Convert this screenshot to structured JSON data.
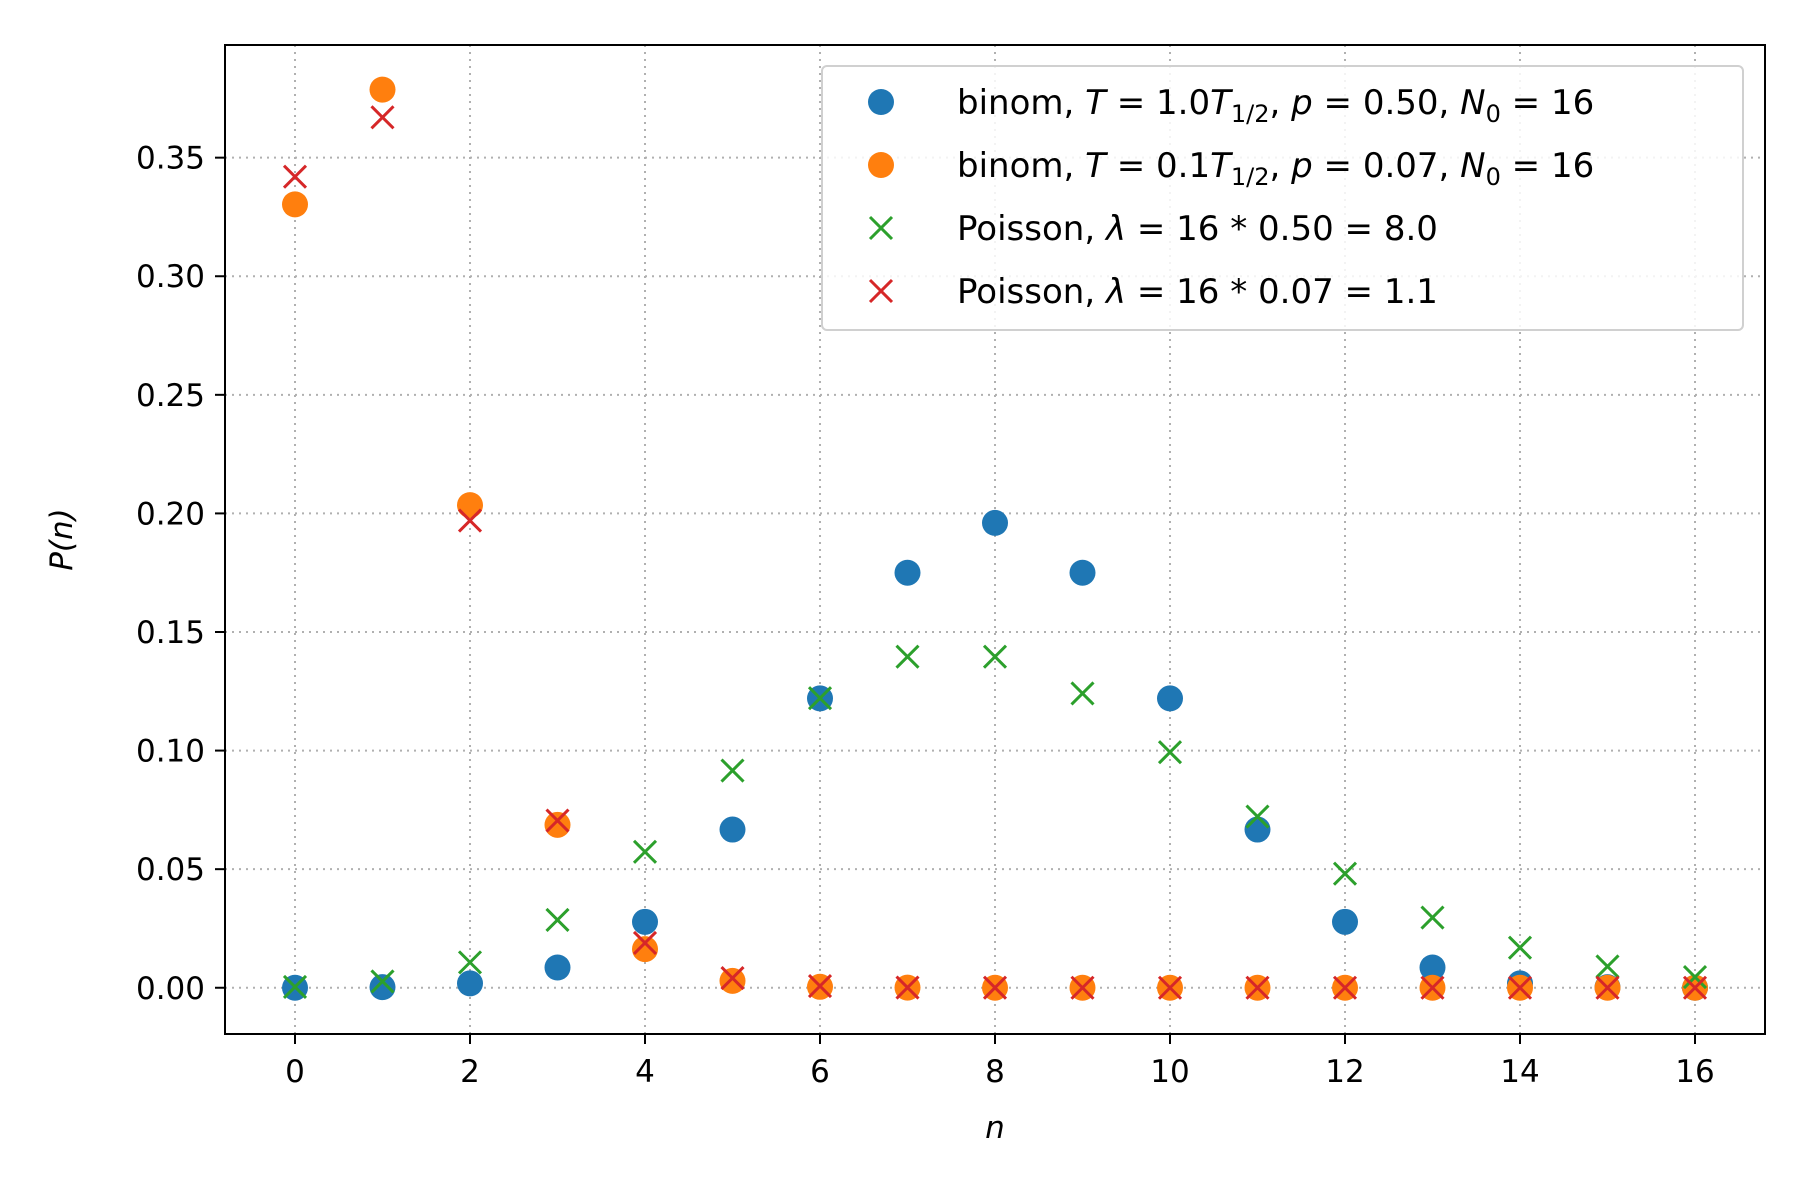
{
  "chart_data": {
    "type": "scatter",
    "xlabel": "n",
    "ylabel": "P(n)",
    "xlim": [
      -0.8,
      16.8
    ],
    "ylim": [
      -0.0195,
      0.3975
    ],
    "xticks": [
      0,
      2,
      4,
      6,
      8,
      10,
      12,
      14,
      16
    ],
    "xtick_labels": [
      "0",
      "2",
      "4",
      "6",
      "8",
      "10",
      "12",
      "14",
      "16"
    ],
    "yticks": [
      0.0,
      0.05,
      0.1,
      0.15,
      0.2,
      0.25,
      0.3,
      0.35
    ],
    "ytick_labels": [
      "0.00",
      "0.05",
      "0.10",
      "0.15",
      "0.20",
      "0.25",
      "0.30",
      "0.35"
    ],
    "grid": true,
    "legend_position": "top-right",
    "x": [
      0,
      1,
      2,
      3,
      4,
      5,
      6,
      7,
      8,
      9,
      10,
      11,
      12,
      13,
      14,
      15,
      16
    ],
    "series": [
      {
        "name": "binom, T = 1.0T1/2,  p = 0.50,  N0 = 16",
        "legend_parts": [
          "binom, ",
          "T",
          " = 1.0",
          "T",
          "1/2",
          ",  ",
          "p",
          " = 0.50,  ",
          "N",
          "0",
          " = 16"
        ],
        "marker": "circle",
        "color": "#1f77b4",
        "values": [
          1.53e-05,
          0.000244,
          0.00183,
          0.00854,
          0.0278,
          0.0667,
          0.122,
          0.175,
          0.196,
          0.175,
          0.122,
          0.0667,
          0.0278,
          0.00854,
          0.00183,
          0.000244,
          1.53e-05
        ]
      },
      {
        "name": "binom, T = 0.1T1/2,  p = 0.07,  N0 = 16",
        "legend_parts": [
          "binom, ",
          "T",
          " = 0.1",
          "T",
          "1/2",
          ",  ",
          "p",
          " = 0.07,  ",
          "N",
          "0",
          " = 16"
        ],
        "marker": "circle",
        "color": "#ff7f0e",
        "values": [
          0.3303,
          0.3787,
          0.2035,
          0.0687,
          0.0163,
          0.0029,
          0.0004,
          4e-05,
          3e-06,
          0.0,
          0.0,
          0.0,
          0.0,
          0.0,
          0.0,
          0.0,
          0.0
        ]
      },
      {
        "name": "Poisson, λ = 16 * 0.50 = 8.0",
        "legend_parts": [
          "Poisson, ",
          "λ",
          " = 16 * 0.50 = 8.0"
        ],
        "marker": "x",
        "color": "#2ca02c",
        "values": [
          0.000335,
          0.00268,
          0.0107,
          0.0286,
          0.0573,
          0.0916,
          0.1221,
          0.1396,
          0.1396,
          0.1241,
          0.0993,
          0.0722,
          0.0481,
          0.0296,
          0.0169,
          0.009,
          0.0045
        ]
      },
      {
        "name": "Poisson, λ = 16 * 0.07 = 1.1",
        "legend_parts": [
          "Poisson, ",
          "λ",
          " = 16 * 0.07 = 1.1"
        ],
        "marker": "x",
        "color": "#d62728",
        "values": [
          0.342,
          0.367,
          0.197,
          0.0705,
          0.0189,
          0.0041,
          0.0007,
          0.0001,
          2e-05,
          0.0,
          0.0,
          0.0,
          0.0,
          0.0,
          0.0,
          0.0,
          0.0
        ]
      }
    ]
  }
}
